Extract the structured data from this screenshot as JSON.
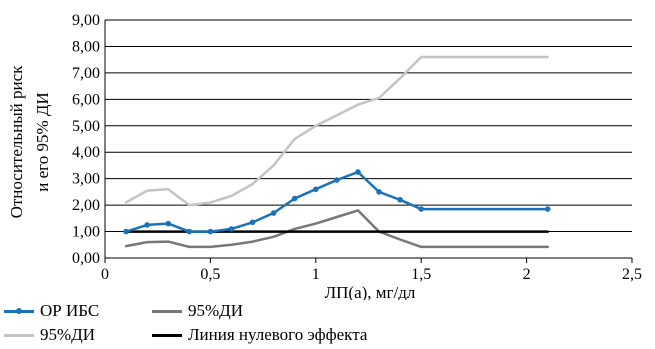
{
  "chart_data": {
    "type": "line",
    "ylabel_line1": "Относительный риск",
    "ylabel_line2": "и его 95% ДИ",
    "xlabel": "ЛП(а), мг/дл",
    "xlim": [
      0,
      2.5
    ],
    "ylim": [
      0,
      9
    ],
    "x_ticks": [
      "0",
      "0,5",
      "1",
      "1,5",
      "2",
      "2,5"
    ],
    "y_ticks": [
      "0,00",
      "1,00",
      "2,00",
      "3,00",
      "4,00",
      "5,00",
      "6,00",
      "7,00",
      "8,00",
      "9,00"
    ],
    "grid": "horizontal",
    "legend_position": "bottom",
    "series": [
      {
        "name": "ОР ИБС",
        "color": "#1a72b8",
        "markers": true,
        "x": [
          0.1,
          0.2,
          0.3,
          0.4,
          0.5,
          0.6,
          0.7,
          0.8,
          0.9,
          1.0,
          1.1,
          1.2,
          1.3,
          1.4,
          1.5,
          2.1
        ],
        "values": [
          1.0,
          1.25,
          1.3,
          1.0,
          1.0,
          1.1,
          1.35,
          1.7,
          2.25,
          2.6,
          2.95,
          3.25,
          2.5,
          2.2,
          1.85,
          1.85
        ]
      },
      {
        "name": "95%ДИ",
        "color": "#777777",
        "markers": false,
        "x": [
          0.1,
          0.2,
          0.3,
          0.4,
          0.5,
          0.6,
          0.7,
          0.8,
          0.9,
          1.0,
          1.1,
          1.2,
          1.3,
          1.4,
          1.5,
          2.1
        ],
        "values": [
          0.45,
          0.6,
          0.62,
          0.42,
          0.42,
          0.5,
          0.62,
          0.8,
          1.1,
          1.3,
          1.55,
          1.8,
          1.0,
          0.7,
          0.42,
          0.42
        ]
      },
      {
        "name": "95%ДИ",
        "color": "#c4c4c4",
        "markers": false,
        "x": [
          0.1,
          0.2,
          0.3,
          0.4,
          0.5,
          0.6,
          0.7,
          0.8,
          0.9,
          1.0,
          1.1,
          1.2,
          1.3,
          1.4,
          1.5,
          2.1
        ],
        "values": [
          2.1,
          2.55,
          2.6,
          2.0,
          2.1,
          2.35,
          2.8,
          3.5,
          4.5,
          5.0,
          5.4,
          5.8,
          6.05,
          6.8,
          7.6,
          7.6
        ]
      },
      {
        "name": "Линия нулевого эффекта",
        "color": "#000000",
        "markers": false,
        "x": [
          0.1,
          2.1
        ],
        "values": [
          1.0,
          1.0
        ]
      }
    ],
    "legend": [
      {
        "label": "ОР ИБС",
        "color": "#1a72b8",
        "markers": true
      },
      {
        "label": "95%ДИ",
        "color": "#777777",
        "markers": false
      },
      {
        "label": "95%ДИ",
        "color": "#c4c4c4",
        "markers": false
      },
      {
        "label": "Линия нулевого эффекта",
        "color": "#000000",
        "markers": false
      }
    ]
  }
}
